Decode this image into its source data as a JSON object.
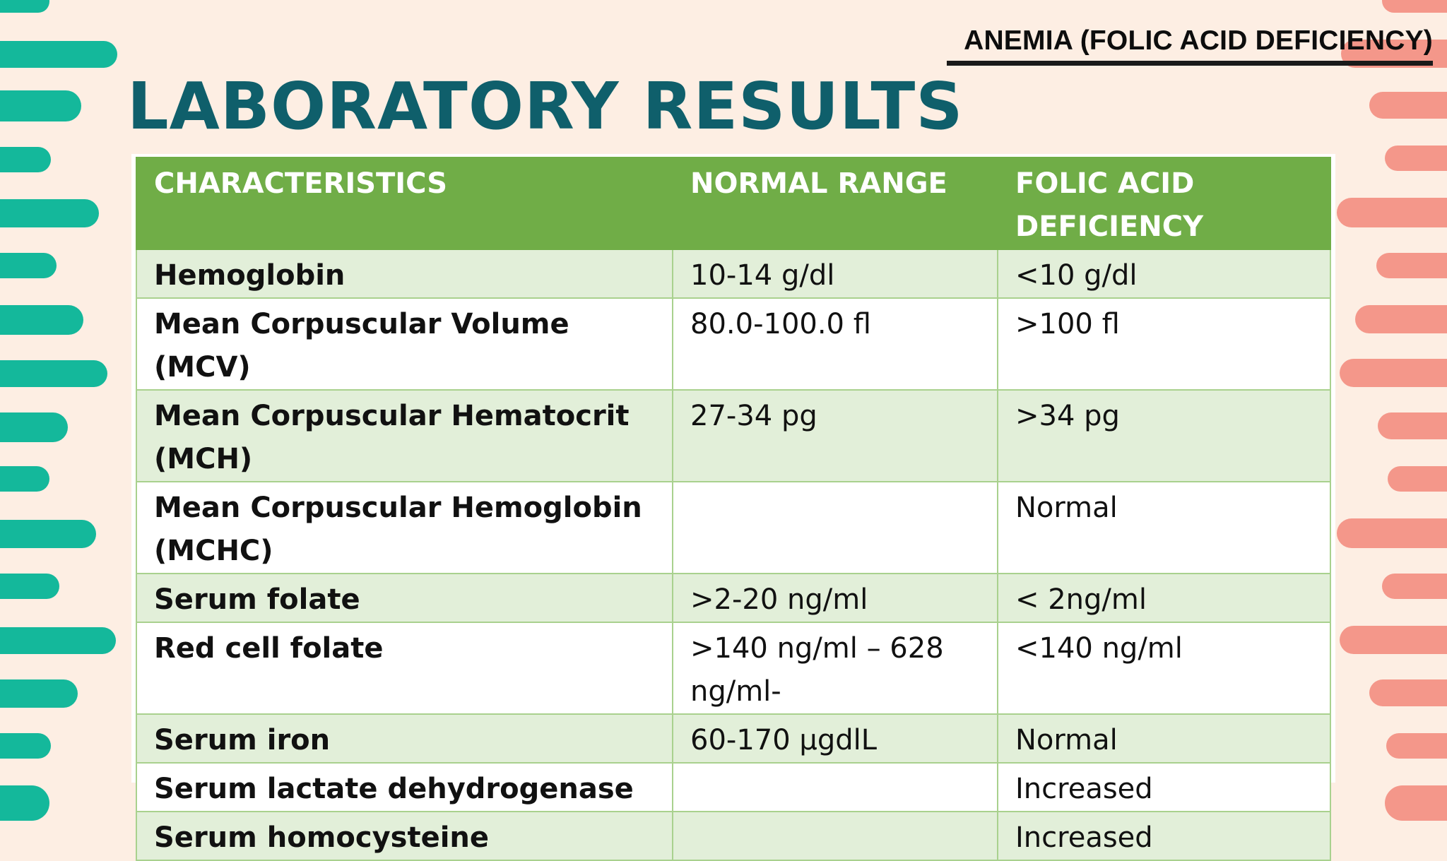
{
  "header_tag": "ANEMIA (FOLIC ACID DEFICIENCY)",
  "title": "LABORATORY RESULTS",
  "table": {
    "headers": [
      "CHARACTERISTICS",
      "NORMAL RANGE",
      "FOLIC ACID DEFICIENCY"
    ],
    "rows": [
      [
        "Hemoglobin",
        "10-14 g/dl",
        "<10 g/dl"
      ],
      [
        "Mean Corpuscular Volume (MCV)",
        "80.0-100.0 fl",
        ">100 fl"
      ],
      [
        "Mean Corpuscular  Hematocrit (MCH)",
        "27-34 pg",
        ">34 pg"
      ],
      [
        "Mean Corpuscular Hemoglobin (MCHC)",
        "",
        "Normal"
      ],
      [
        "Serum folate",
        ">2-20 ng/ml",
        "< 2ng/ml"
      ],
      [
        "Red cell folate",
        ">140 ng/ml – 628 ng/ml-",
        "<140 ng/ml"
      ],
      [
        "Serum iron",
        "60-170 µgdlL",
        "Normal"
      ],
      [
        "Serum lactate dehydrogenase",
        "",
        "Increased"
      ],
      [
        "Serum homocysteine",
        "",
        "Increased"
      ]
    ]
  },
  "colors": {
    "background": "#fdeee3",
    "title": "#0f5f6b",
    "header_fill": "#70ad47",
    "row_alt_fill": "#e2efd9",
    "left_deco": "#14b89b",
    "right_deco": "#f4978a"
  }
}
